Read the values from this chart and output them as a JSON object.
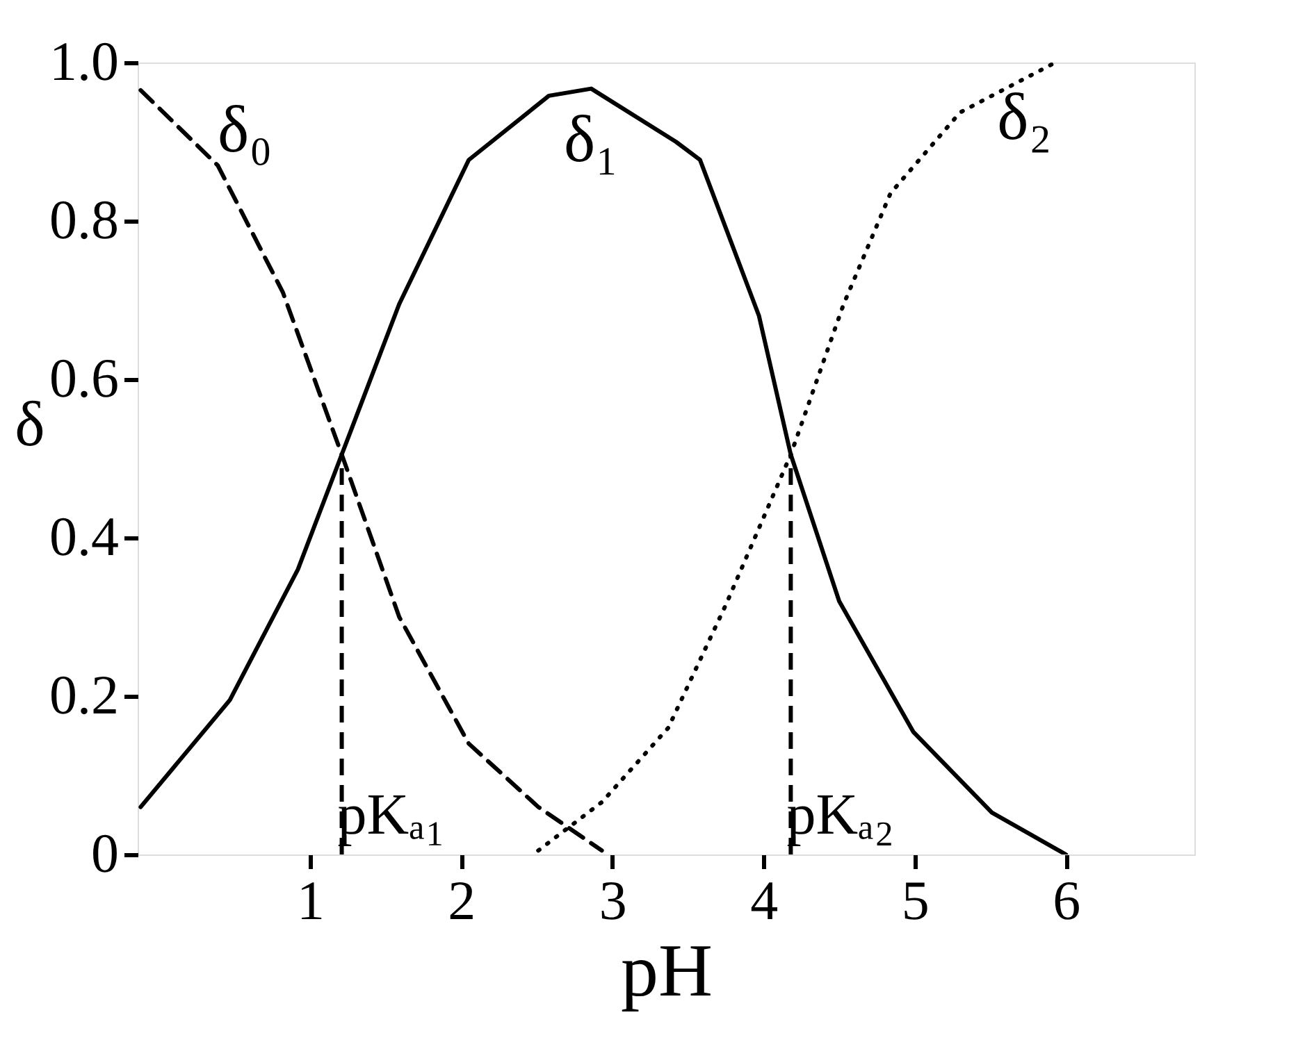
{
  "chart_data": {
    "type": "line",
    "xlabel": "pH",
    "ylabel": "δ",
    "xlim": [
      -0.14,
      6.85
    ],
    "xticks": [
      1,
      2,
      3,
      4,
      5,
      6
    ],
    "ylim": [
      0,
      1
    ],
    "yticks": [
      0,
      0.2,
      0.4,
      0.6,
      0.8,
      {
        "value": 1,
        "label": "1.0"
      }
    ],
    "marker": "none",
    "series": [
      {
        "name": "δ₀",
        "color": "#000000",
        "line_style": "dashed",
        "x": [
          -0.12,
          0.39,
          0.82,
          1.21,
          1.59,
          2.05,
          2.51,
          2.93
        ],
        "values": [
          0.965,
          0.87,
          0.71,
          0.505,
          0.3,
          0.14,
          0.06,
          0.005
        ]
      },
      {
        "name": "δ₁",
        "color": "#000000",
        "line_style": "solid",
        "x": [
          -0.12,
          0.47,
          0.92,
          1.21,
          1.59,
          2.05,
          2.58,
          2.86,
          3.42,
          3.58,
          3.97,
          4.18,
          4.5,
          4.99,
          5.51,
          6.0
        ],
        "values": [
          0.06,
          0.195,
          0.36,
          0.505,
          0.695,
          0.877,
          0.958,
          0.967,
          0.9,
          0.877,
          0.68,
          0.505,
          0.32,
          0.155,
          0.053,
          0
        ]
      },
      {
        "name": "δ₂",
        "color": "#000000",
        "line_style": "dotted",
        "x": [
          2.51,
          2.93,
          3.37,
          3.75,
          4.18,
          4.53,
          4.84,
          5.3,
          5.91
        ],
        "values": [
          0.005,
          0.066,
          0.16,
          0.315,
          0.505,
          0.695,
          0.835,
          0.937,
          0.998
        ]
      }
    ],
    "ref_lines": [
      {
        "axis": "x",
        "value": 1.21,
        "label": "pKₐ₁",
        "line_style": "dashed",
        "color": "#000000"
      },
      {
        "axis": "x",
        "value": 4.18,
        "label": "pKₐ₂",
        "line_style": "dashed",
        "color": "#000000"
      }
    ]
  }
}
